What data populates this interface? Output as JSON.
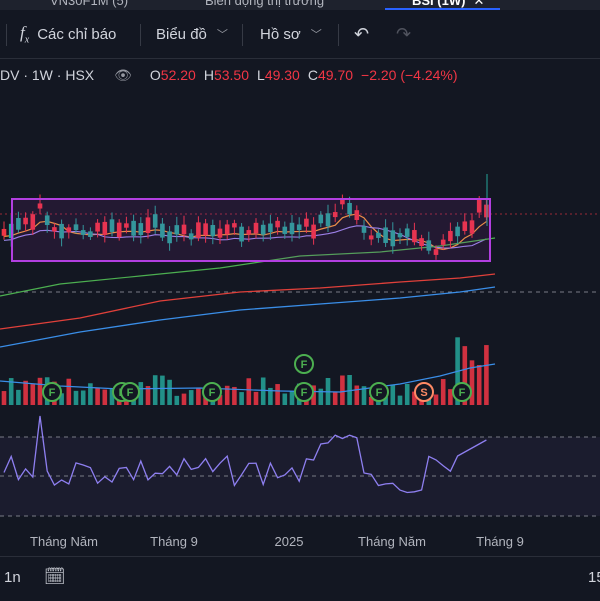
{
  "tabs": [
    {
      "label": "VN30F1M (5)"
    },
    {
      "label": "Biến động thị trường"
    },
    {
      "label": "BSI (1W)"
    }
  ],
  "toolbar": {
    "indicators_label": "Các chỉ báo",
    "chart_label": "Biểu đồ",
    "profile_label": "Hồ sơ"
  },
  "legend": {
    "symbol": "DV · 1W · HSX",
    "open_key": "O",
    "open": "52.20",
    "high_key": "H",
    "high": "53.50",
    "low_key": "L",
    "low": "49.30",
    "close_key": "C",
    "close": "49.70",
    "change": "−2.20 (−4.24%)"
  },
  "colors": {
    "up": "#26a69a",
    "down": "#f23645",
    "box": "#b23fe0",
    "rsi": "#8e7ff0",
    "ma_fast": "#f59b3b",
    "ma_mid": "#4caf50",
    "ma_slow_red": "#e0403a",
    "ma_slow_blue": "#3a8ee8"
  },
  "time_axis": {
    "labels": [
      "Tháng Năm",
      "Tháng 9",
      "2025",
      "Tháng Năm",
      "Tháng 9"
    ]
  },
  "event_markers": [
    "F",
    "F",
    "F",
    "F",
    "F",
    "F",
    "F",
    "S",
    "F"
  ],
  "bottom_bar": {
    "range_label": "1n",
    "right_label": "15"
  }
}
